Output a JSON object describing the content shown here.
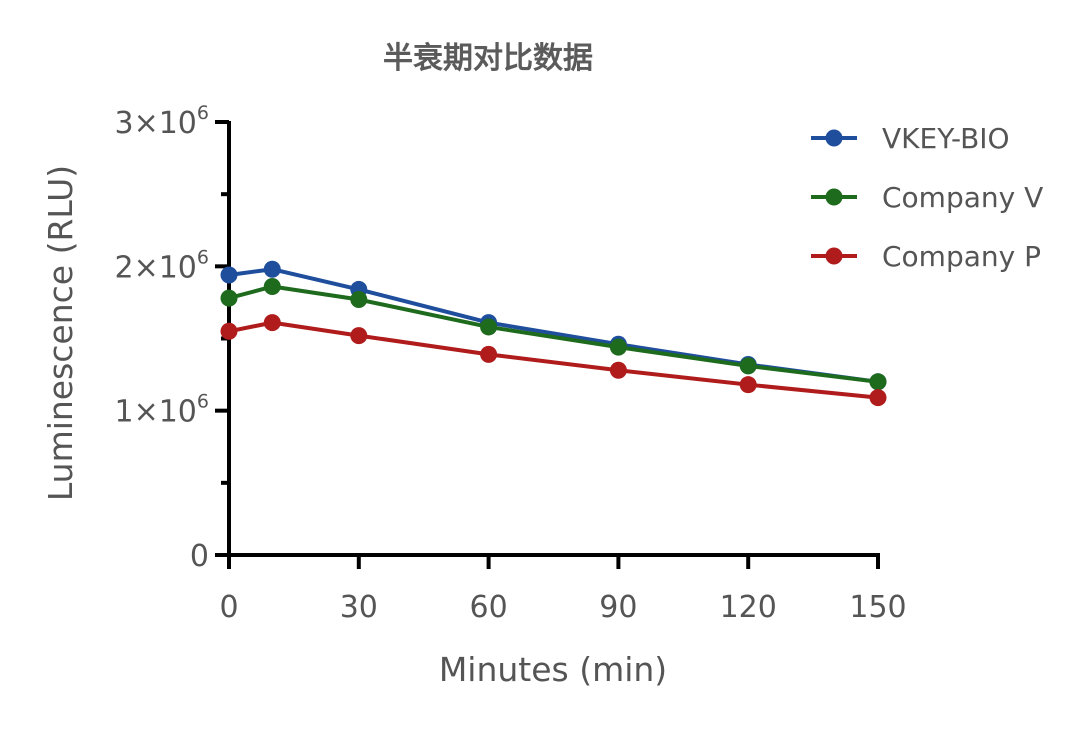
{
  "chart_data": {
    "type": "line",
    "title": "半衰期对比数据",
    "xlabel": "Minutes (min)",
    "ylabel": "Luminescence (RLU)",
    "xlim": [
      0,
      150
    ],
    "ylim": [
      0,
      3000000
    ],
    "x_ticks": [
      0,
      30,
      60,
      90,
      120,
      150
    ],
    "x_tick_labels": [
      "0",
      "30",
      "60",
      "90",
      "120",
      "150"
    ],
    "y_ticks": [
      0,
      1000000,
      2000000,
      3000000
    ],
    "y_minor_ticks": [
      500000,
      1500000,
      2500000
    ],
    "y_tick_labels": [
      {
        "mantissa": "0",
        "exp": ""
      },
      {
        "mantissa": "1×10",
        "exp": "6"
      },
      {
        "mantissa": "2×10",
        "exp": "6"
      },
      {
        "mantissa": "3×10",
        "exp": "6"
      }
    ],
    "grid": false,
    "legend_position": "top-right",
    "series": [
      {
        "name": "VKEY-BIO",
        "color": "#1f4e9c",
        "x": [
          0,
          10,
          30,
          60,
          90,
          120,
          150
        ],
        "y": [
          1940000,
          1980000,
          1840000,
          1610000,
          1460000,
          1320000,
          1200000
        ]
      },
      {
        "name": "Company V",
        "color": "#1e6b1e",
        "x": [
          0,
          10,
          30,
          60,
          90,
          120,
          150
        ],
        "y": [
          1780000,
          1860000,
          1770000,
          1580000,
          1440000,
          1310000,
          1200000
        ]
      },
      {
        "name": "Company P",
        "color": "#b01c1c",
        "x": [
          0,
          10,
          30,
          60,
          90,
          120,
          150
        ],
        "y": [
          1550000,
          1610000,
          1520000,
          1390000,
          1280000,
          1180000,
          1090000
        ]
      }
    ]
  }
}
